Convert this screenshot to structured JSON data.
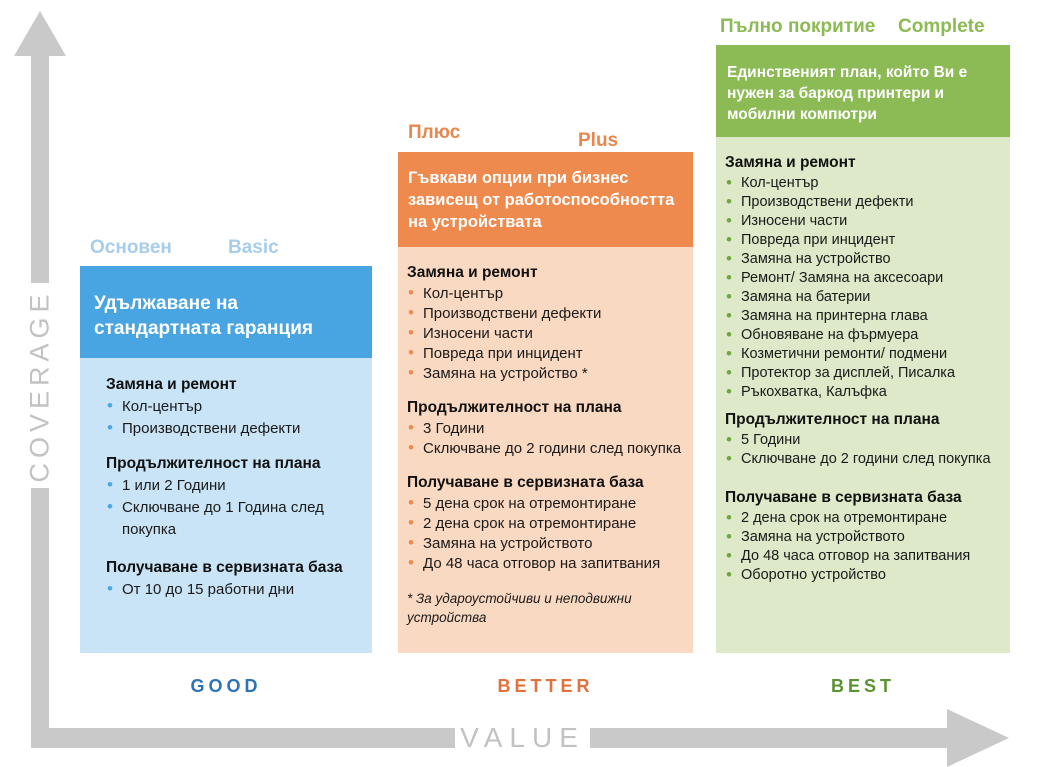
{
  "axes": {
    "y_label": "COVERAGE",
    "x_label": "VALUE",
    "arrow_color": "#c9c9c9",
    "label_color": "#c2c2c2"
  },
  "columns": [
    {
      "key": "basic",
      "label_local": "Основен",
      "label_en": "Basic",
      "tier": "GOOD",
      "headline": "Удължаване на стандартната гаранция",
      "colors": {
        "label": "#a6cdec",
        "header_bg": "#49a5e2",
        "body_bg": "#c9e4f6",
        "accent": "#4aa6e3",
        "tier": "#2e74b5"
      },
      "sections": [
        {
          "title": "Замяна и ремонт",
          "items": [
            "Кол-център",
            "Производствени дефекти"
          ]
        },
        {
          "title": "Продължителност на плана",
          "items": [
            "1 или 2 Години",
            "Сключване до 1 Година след покупка"
          ]
        },
        {
          "title": "Получаване в сервизната база",
          "items": [
            "От 10 до 15 работни дни"
          ]
        }
      ]
    },
    {
      "key": "plus",
      "label_local": "Плюс",
      "label_en": "Plus",
      "tier": "BETTER",
      "headline": "Гъвкави опции при бизнес зависещ от работоспособността на устройствата",
      "colors": {
        "label": "#e8874d",
        "header_bg": "#ee8a4e",
        "body_bg": "#fad9c3",
        "accent": "#ed8b4f",
        "tier": "#e2713b"
      },
      "sections": [
        {
          "title": "Замяна и ремонт",
          "items": [
            "Кол-център",
            "Производствени дефекти",
            "Износени части",
            "Повреда при инцидент",
            "Замяна на устройство *"
          ]
        },
        {
          "title": "Продължителност на плана",
          "items": [
            "3 Години",
            "Сключване до 2 години след покупка"
          ]
        },
        {
          "title": "Получаване в сервизната база",
          "items": [
            "5 дена срок на отремонтиране",
            "2 дена срок на отремонтиране",
            "Замяна на устройството",
            "До 48 часа отговор на запитвания"
          ]
        }
      ],
      "footnote": "* За удароустойчиви и неподвижни устройства"
    },
    {
      "key": "complete",
      "label_local": "Пълно покритие",
      "label_en": "Complete",
      "tier": "BEST",
      "headline": "Единственият план, който Ви е нужен за баркод принтери и мобилни компютри",
      "colors": {
        "label": "#8cba55",
        "header_bg": "#8cba55",
        "body_bg": "#dde9c9",
        "accent": "#6fa83f",
        "tier": "#5b9331"
      },
      "sections": [
        {
          "title": "Замяна и ремонт",
          "items": [
            "Кол-център",
            "Производствени дефекти",
            "Износени части",
            "Повреда при инцидент",
            "Замяна на устройство",
            "Ремонт/ Замяна на аксесоари",
            "Замяна на батерии",
            "Замяна на принтерна глава",
            "Обновяване на фърмуера",
            "Козметични ремонти/ подмени",
            "Протектор за дисплей, Писалка",
            "Ръкохватка, Калъфка"
          ]
        },
        {
          "title": "Продължителност на плана",
          "items": [
            "5 Години",
            "Сключване до 2 години след покупка"
          ]
        },
        {
          "title": "Получаване в сервизната база",
          "items": [
            "2 дена срок на отремонтиране",
            "Замяна на устройството",
            "До 48 часа отговор на запитвания",
            "Оборотно устройство"
          ]
        }
      ]
    }
  ]
}
